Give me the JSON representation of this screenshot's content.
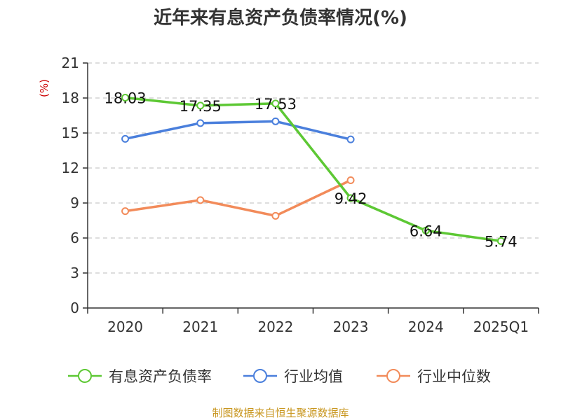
{
  "chart_data": {
    "type": "line",
    "title": "近年来有息资产负债率情况(%)",
    "ylabel": "(%)",
    "categories": [
      "2020",
      "2021",
      "2022",
      "2023",
      "2024",
      "2025Q1"
    ],
    "ylim": [
      0,
      21
    ],
    "yticks": [
      0,
      3,
      6,
      9,
      12,
      15,
      18,
      21
    ],
    "grid": true,
    "legend_position": "bottom",
    "series": [
      {
        "name": "有息资产负债率",
        "color": "#5dc834",
        "values": [
          18.03,
          17.35,
          17.53,
          9.42,
          6.64,
          5.74
        ],
        "labels": [
          "18.03",
          "17.35",
          "17.53",
          "9.42",
          "6.64",
          "5.74"
        ]
      },
      {
        "name": "行业均值",
        "color": "#4a7fdc",
        "values": [
          14.5,
          15.85,
          16.0,
          14.45,
          null,
          null
        ]
      },
      {
        "name": "行业中位数",
        "color": "#f28b5a",
        "values": [
          8.3,
          9.25,
          7.9,
          10.95,
          null,
          null
        ]
      }
    ],
    "source": "制图数据来自恒生聚源数据库"
  }
}
